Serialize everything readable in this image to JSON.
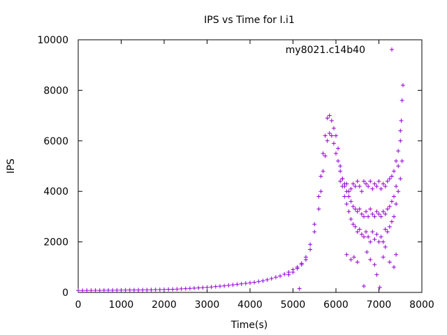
{
  "chart_data": {
    "type": "scatter",
    "title": "IPS vs Time for I.i1",
    "xlabel": "Time(s)",
    "ylabel": "IPS",
    "xlim": [
      0,
      8000
    ],
    "ylim": [
      0,
      10000
    ],
    "xticks": [
      0,
      1000,
      2000,
      3000,
      4000,
      5000,
      6000,
      7000,
      8000
    ],
    "yticks": [
      0,
      2000,
      4000,
      6000,
      8000,
      10000
    ],
    "grid": false,
    "legend_position": "top-right",
    "marker": "plus",
    "series": [
      {
        "name": "my8021.c14b40",
        "color": "#9400d3",
        "x": [
          0,
          100,
          200,
          300,
          400,
          500,
          600,
          700,
          800,
          900,
          1000,
          1100,
          1200,
          1300,
          1400,
          1500,
          1600,
          1700,
          1800,
          1900,
          2000,
          2100,
          2200,
          2300,
          2400,
          2500,
          2600,
          2700,
          2800,
          2900,
          3000,
          3100,
          3200,
          3300,
          3400,
          3500,
          3600,
          3700,
          3800,
          3900,
          4000,
          4100,
          4200,
          4300,
          4400,
          4500,
          4600,
          4700,
          4800,
          4900,
          5000,
          5100,
          5200,
          5300,
          5400,
          5500,
          5600,
          5650,
          5700,
          5750,
          5800,
          5850,
          5900,
          5950,
          6000,
          6050,
          6100,
          6150,
          6200,
          6250,
          6300,
          6350,
          6400,
          6450,
          6500,
          6550,
          6600,
          6650,
          6700,
          6750,
          6800,
          6850,
          6900,
          6950,
          7000,
          7050,
          7100,
          7150,
          7200,
          7250,
          7300,
          7350,
          7400,
          7450,
          7500,
          7520,
          7540,
          7560
        ],
        "y": [
          80,
          75,
          80,
          78,
          82,
          80,
          85,
          85,
          88,
          90,
          90,
          92,
          95,
          95,
          98,
          100,
          100,
          105,
          110,
          112,
          115,
          120,
          125,
          130,
          140,
          150,
          160,
          170,
          180,
          190,
          200,
          215,
          230,
          245,
          260,
          280,
          300,
          320,
          340,
          360,
          380,
          400,
          430,
          460,
          500,
          550,
          600,
          650,
          720,
          800,
          900,
          1000,
          1150,
          1400,
          1900,
          2700,
          3800,
          4600,
          5500,
          6200,
          6900,
          7000,
          6800,
          6500,
          6200,
          5700,
          5000,
          4500,
          4300,
          4000,
          3800,
          3600,
          3400,
          3300,
          3200,
          3300,
          3100,
          3000,
          3200,
          3000,
          3300,
          3100,
          3000,
          3200,
          3100,
          3000,
          3200,
          3100,
          3300,
          3400,
          3600,
          3800,
          4200,
          5000,
          6000,
          6800,
          7600,
          8200
        ]
      },
      {
        "name": "",
        "color": "#9400d3",
        "x": [
          4900,
          5000,
          5100,
          5200,
          5300,
          5400,
          5500,
          5600,
          5650,
          5700,
          5750,
          5800,
          5850,
          5900,
          5950,
          6000,
          6050,
          6100,
          6150,
          6200,
          6250,
          6300,
          6350,
          6400,
          6450,
          6500,
          6550,
          6600,
          6650,
          6700,
          6750,
          6800,
          6850,
          6900,
          6950,
          7000,
          7050,
          7100,
          7150,
          7200,
          7250,
          7300,
          7350,
          7400,
          7450,
          7500,
          7540
        ],
        "y": [
          700,
          800,
          950,
          1100,
          1300,
          1700,
          2400,
          3300,
          4000,
          4800,
          5400,
          6000,
          6300,
          6200,
          5900,
          5500,
          5200,
          4800,
          4200,
          3800,
          3500,
          3200,
          2900,
          2700,
          2600,
          2400,
          2500,
          2300,
          2200,
          2400,
          2200,
          2000,
          2400,
          2100,
          2300,
          2000,
          2200,
          2000,
          2500,
          2400,
          2600,
          2800,
          3000,
          3500,
          4000,
          4500,
          5200
        ]
      },
      {
        "name": "",
        "color": "#9400d3",
        "x": [
          6100,
          6150,
          6200,
          6250,
          6300,
          6350,
          6400,
          6450,
          6500,
          6550,
          6600,
          6650,
          6700,
          6750,
          6800,
          6850,
          6900,
          6950,
          7000,
          7050,
          7100,
          7150,
          7200,
          7250,
          7300,
          7350,
          7400,
          7450,
          7500
        ],
        "y": [
          4400,
          4500,
          4200,
          4300,
          4000,
          4100,
          4300,
          4200,
          4400,
          4200,
          4000,
          4400,
          4300,
          4200,
          4400,
          4100,
          4300,
          4200,
          4400,
          4100,
          4300,
          4200,
          4400,
          4500,
          4600,
          4800,
          5200,
          5600,
          6400
        ]
      },
      {
        "name": "",
        "color": "#9400d3",
        "x": [
          5150,
          6250,
          6350,
          6420,
          6500,
          6650,
          6720,
          6800,
          6900,
          6950,
          7020,
          7100,
          7150,
          7250,
          7350,
          7400
        ],
        "y": [
          150,
          1500,
          1300,
          1400,
          1200,
          250,
          1600,
          1300,
          1100,
          700,
          200,
          1400,
          1800,
          1200,
          1000,
          1500
        ]
      }
    ]
  }
}
